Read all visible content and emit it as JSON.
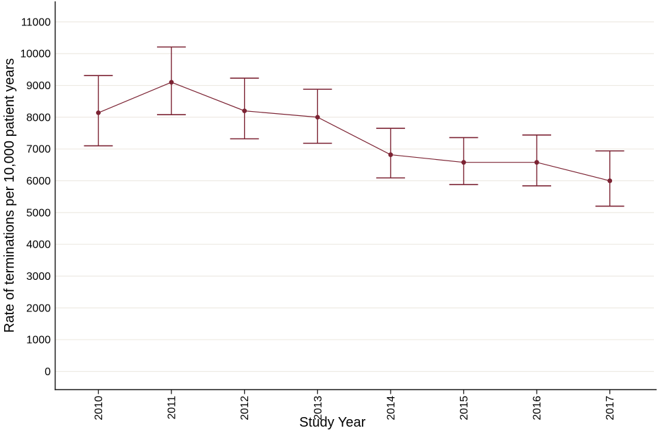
{
  "chart_data": {
    "type": "line",
    "title": "",
    "xlabel": "Study Year",
    "ylabel": "Rate of terminations per 10,000 patient years",
    "categories": [
      "2010",
      "2011",
      "2012",
      "2013",
      "2014",
      "2015",
      "2016",
      "2017"
    ],
    "series": [
      {
        "name": "Rate of terminations per 10,000 patient years",
        "values": [
          8140,
          9100,
          8200,
          8000,
          6820,
          6580,
          6580,
          6000
        ],
        "ci_upper": [
          9310,
          10210,
          9230,
          8880,
          7650,
          7360,
          7440,
          6940
        ],
        "ci_lower": [
          7100,
          8080,
          7320,
          7180,
          6090,
          5880,
          5840,
          5200
        ]
      }
    ],
    "ylim": [
      0,
      11000
    ],
    "y_tick_labels": [
      "0",
      "1000",
      "2000",
      "3000",
      "4000",
      "5000",
      "6000",
      "7000",
      "8000",
      "9000",
      "10000",
      "11000"
    ],
    "grid": "horizontal",
    "legend_position": "none",
    "marker": "filled-circle-with-error-bar-caps",
    "colors": {
      "series": "#7c2333",
      "gridline": "#edeae3",
      "axis": "#1a1a1a",
      "text": "#000000",
      "background": "#ffffff"
    }
  }
}
